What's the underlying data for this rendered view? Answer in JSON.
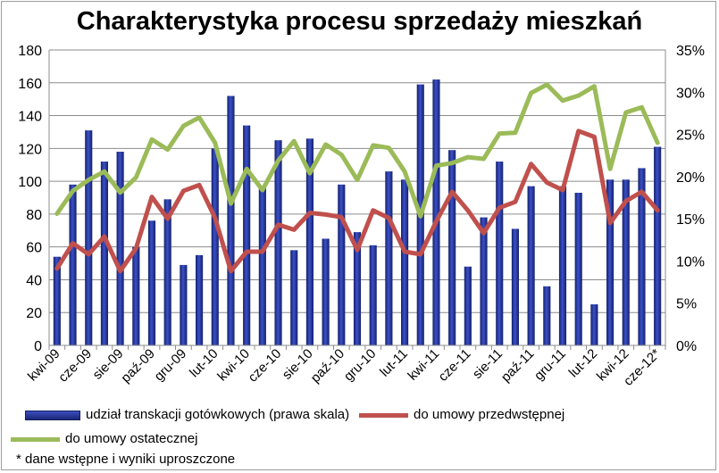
{
  "chart_data": {
    "type": "bar",
    "title": "Charakterystyka procesu sprzedaży mieszkań",
    "x": [
      "kwi-09",
      "maj-09",
      "cze-09",
      "lip-09",
      "sie-09",
      "wrz-09",
      "paź-09",
      "lis-09",
      "gru-09",
      "sty-10",
      "lut-10",
      "mar-10",
      "kwi-10",
      "maj-10",
      "cze-10",
      "lip-10",
      "sie-10",
      "wrz-10",
      "paź-10",
      "lis-10",
      "gru-10",
      "sty-11",
      "lut-11",
      "mar-11",
      "kwi-11",
      "maj-11",
      "cze-11",
      "lip-11",
      "sie-11",
      "wrz-11",
      "paź-11",
      "lis-11",
      "gru-11",
      "sty-12",
      "lut-12",
      "mar-12",
      "kwi-12",
      "maj-12",
      "cze-12*"
    ],
    "tick_labels": [
      "kwi-09",
      "cze-09",
      "sie-09",
      "paź-09",
      "gru-09",
      "lut-10",
      "kwi-10",
      "cze-10",
      "sie-10",
      "paź-10",
      "gru-10",
      "lut-11",
      "kwi-11",
      "cze-11",
      "sie-11",
      "paź-11",
      "gru-11",
      "lut-12",
      "kwi-12",
      "cze-12*"
    ],
    "y_left": {
      "min": 0,
      "max": 180,
      "step": 20
    },
    "y_right": {
      "min": 0,
      "max": 35,
      "step": 5,
      "unit": "%"
    },
    "series": [
      {
        "name": "udział transkacji gotówkowych (prawa skala)",
        "type": "bar",
        "axis": "left",
        "color": "#1f2f8f",
        "values": [
          54,
          98,
          131,
          112,
          118,
          60,
          76,
          89,
          49,
          55,
          120,
          152,
          134,
          97,
          125,
          58,
          126,
          65,
          98,
          69,
          61,
          106,
          101,
          159,
          162,
          119,
          48,
          78,
          112,
          71,
          97,
          36,
          97,
          93,
          25,
          101,
          101,
          108,
          121
        ]
      },
      {
        "name": "do umowy przedwstępnej",
        "type": "line",
        "axis": "right",
        "color": "#c0504d",
        "values": [
          9.1,
          12.1,
          10.8,
          12.9,
          8.8,
          11.5,
          17.6,
          15.0,
          18.3,
          19.0,
          15.1,
          8.8,
          11.1,
          11.1,
          14.3,
          13.7,
          15.7,
          15.5,
          15.2,
          11.3,
          16.0,
          15.1,
          11.1,
          10.8,
          14.7,
          18.2,
          16.0,
          13.3,
          16.3,
          17.0,
          21.5,
          19.3,
          18.4,
          25.4,
          24.7,
          14.5,
          17.1,
          18.2,
          16.0
        ]
      },
      {
        "name": "do umowy ostatecznej",
        "type": "line",
        "axis": "right",
        "color": "#9bbb59",
        "values": [
          15.6,
          18.3,
          19.6,
          20.6,
          18.1,
          19.9,
          24.4,
          23.2,
          26.0,
          27.0,
          24.0,
          16.8,
          20.9,
          18.4,
          21.9,
          24.2,
          20.4,
          23.8,
          22.6,
          19.6,
          23.7,
          23.4,
          20.6,
          15.3,
          21.3,
          21.6,
          22.3,
          22.1,
          25.1,
          25.2,
          29.9,
          30.9,
          29.0,
          29.6,
          30.7,
          20.9,
          27.6,
          28.2,
          24.0
        ]
      }
    ],
    "legend": "bottom",
    "footnote": "* dane wstępne i wyniki uproszczone"
  }
}
